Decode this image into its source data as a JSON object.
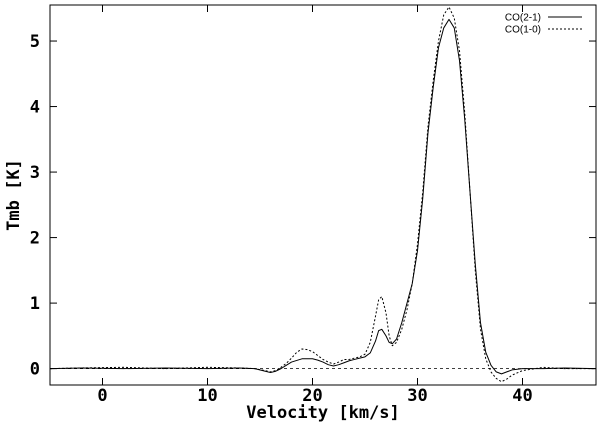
{
  "chart_data": {
    "type": "line",
    "title": "",
    "xlabel": "Velocity [km/s]",
    "ylabel": "Tmb [K]",
    "xlim": [
      -5,
      47
    ],
    "ylim": [
      -0.25,
      5.55
    ],
    "xticks": [
      0,
      10,
      20,
      30,
      40
    ],
    "xtick_labels": [
      "0",
      "10",
      "20",
      "30",
      "40"
    ],
    "yticks": [
      0,
      1,
      2,
      3,
      4,
      5
    ],
    "ytick_labels": [
      "0",
      "1",
      "2",
      "3",
      "4",
      "5"
    ],
    "grid": false,
    "legend_position": "top-right",
    "zero_line": true,
    "series": [
      {
        "name": "CO(2-1)",
        "style": "solid",
        "color": "#000000",
        "x": [
          -5,
          -2,
          2,
          6,
          10,
          13,
          14.5,
          15.5,
          16,
          16.5,
          17,
          17.5,
          18,
          19,
          20,
          20.5,
          21,
          21.5,
          22,
          22.5,
          23,
          23.5,
          24,
          24.5,
          25,
          25.5,
          26,
          26.3,
          26.6,
          27,
          27.3,
          27.6,
          28,
          28.5,
          29,
          29.5,
          30,
          30.5,
          31,
          31.5,
          32,
          32.5,
          33,
          33.5,
          34,
          34.5,
          35,
          35.5,
          36,
          36.5,
          37,
          37.5,
          38,
          38.5,
          39,
          40,
          42,
          44,
          47
        ],
        "y": [
          0.0,
          0.01,
          0.0,
          0.01,
          0.0,
          0.01,
          0.0,
          -0.04,
          -0.06,
          -0.04,
          0.0,
          0.05,
          0.1,
          0.15,
          0.15,
          0.13,
          0.1,
          0.06,
          0.04,
          0.06,
          0.09,
          0.12,
          0.14,
          0.16,
          0.18,
          0.24,
          0.42,
          0.58,
          0.6,
          0.5,
          0.4,
          0.38,
          0.45,
          0.7,
          1.0,
          1.3,
          1.8,
          2.6,
          3.6,
          4.3,
          4.9,
          5.2,
          5.33,
          5.2,
          4.7,
          3.8,
          2.7,
          1.6,
          0.7,
          0.25,
          0.05,
          -0.05,
          -0.08,
          -0.05,
          -0.02,
          0.0,
          0.0,
          0.01,
          0.0
        ]
      },
      {
        "name": "CO(1-0)",
        "style": "dotted",
        "color": "#000000",
        "x": [
          -5,
          -2,
          2,
          6,
          10,
          13,
          14.5,
          15.5,
          16,
          16.5,
          17,
          17.5,
          18,
          18.5,
          19,
          19.5,
          20,
          20.5,
          21,
          21.5,
          22,
          22.5,
          23,
          23.5,
          24,
          24.5,
          25,
          25.5,
          26,
          26.3,
          26.6,
          27,
          27.3,
          27.6,
          28,
          28.5,
          29,
          29.5,
          30,
          30.5,
          31,
          31.5,
          32,
          32.5,
          33,
          33.5,
          34,
          34.5,
          35,
          35.5,
          36,
          36.5,
          37,
          37.5,
          38,
          38.5,
          39,
          40,
          42,
          44,
          47
        ],
        "y": [
          0.0,
          0.01,
          0.02,
          0.0,
          0.02,
          0.01,
          0.0,
          -0.03,
          -0.05,
          -0.03,
          0.02,
          0.08,
          0.16,
          0.25,
          0.3,
          0.29,
          0.26,
          0.2,
          0.14,
          0.1,
          0.07,
          0.1,
          0.14,
          0.14,
          0.16,
          0.18,
          0.22,
          0.4,
          0.8,
          1.05,
          1.1,
          0.85,
          0.5,
          0.35,
          0.4,
          0.6,
          0.9,
          1.3,
          1.9,
          2.7,
          3.7,
          4.4,
          5.0,
          5.4,
          5.52,
          5.35,
          4.85,
          3.9,
          2.7,
          1.5,
          0.6,
          0.15,
          -0.05,
          -0.15,
          -0.2,
          -0.16,
          -0.1,
          -0.03,
          0.02,
          0.0,
          0.0
        ]
      }
    ]
  }
}
